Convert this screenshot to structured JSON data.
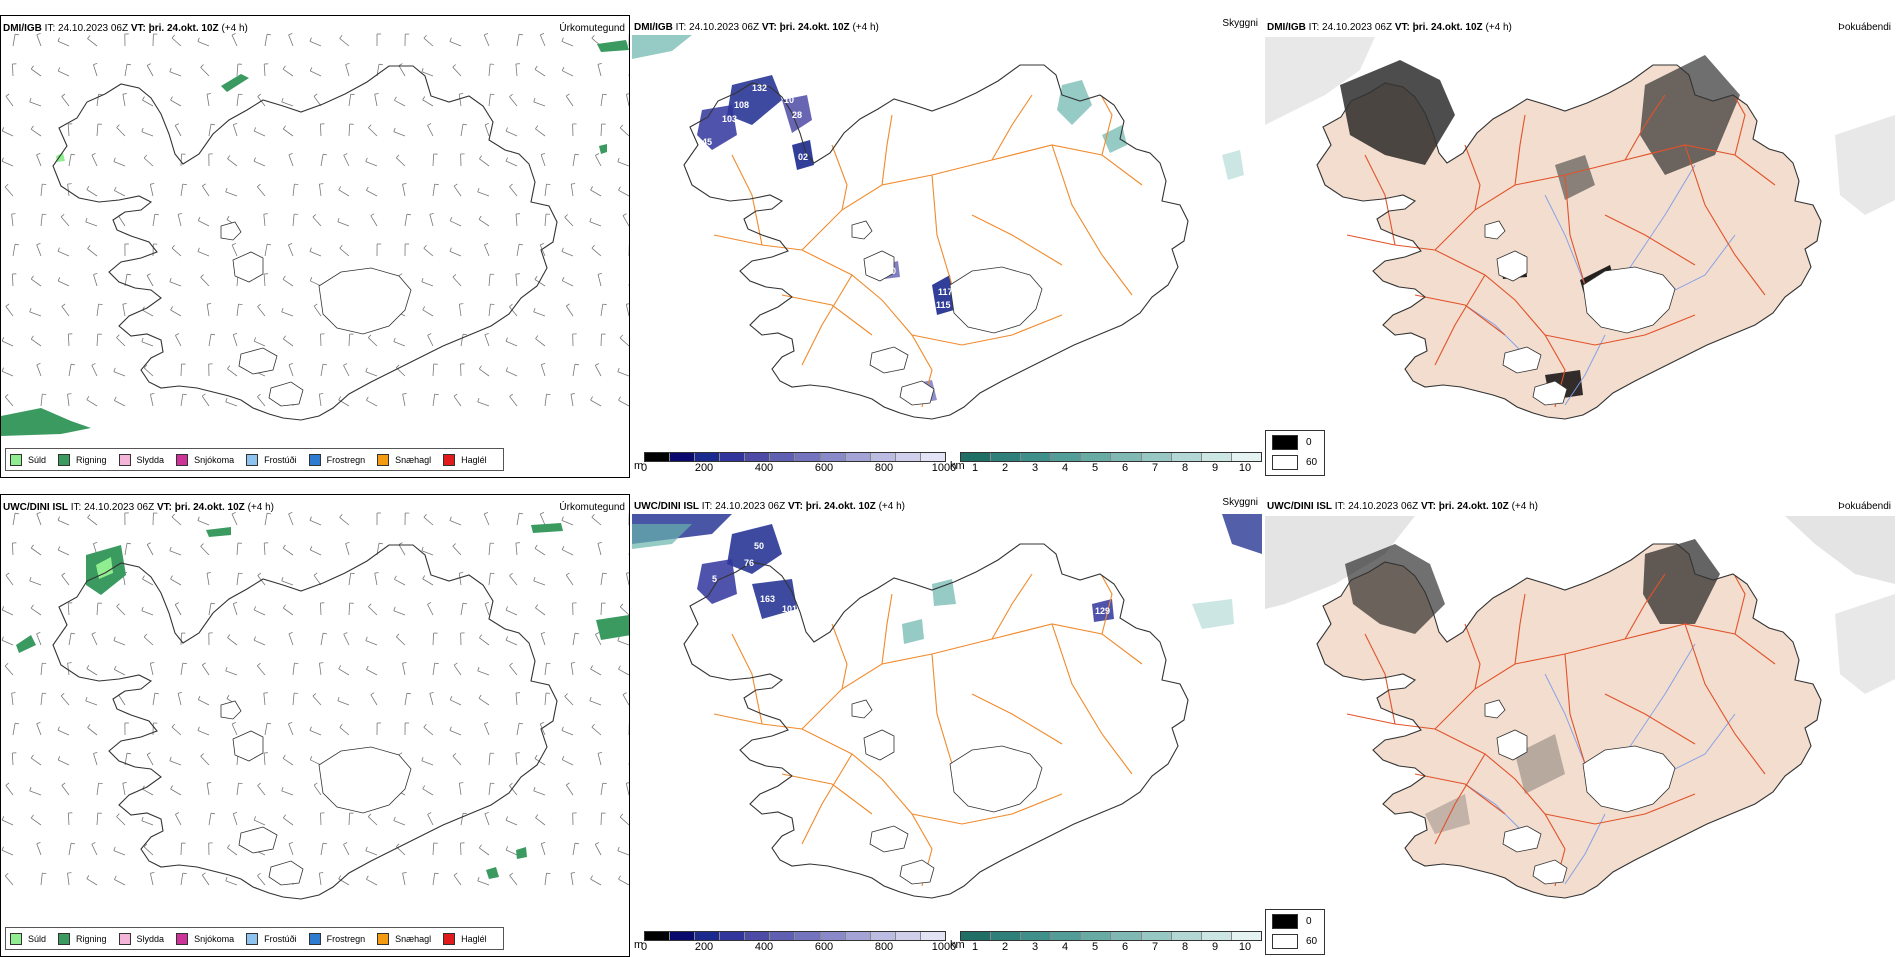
{
  "colors": {
    "coast": "#333333",
    "road_orange": "#f08a2c",
    "road_red": "#e2532a",
    "land_fog": "#f2ddce",
    "river_blue": "#7e9dea",
    "precip_green": "#3a9a60",
    "height_dark": "#1b2a8e",
    "vis_teal": "#6ab3ad"
  },
  "precip_legend": [
    {
      "label": "Súld",
      "color": "#90ee90"
    },
    {
      "label": "Rigning",
      "color": "#3a9a60"
    },
    {
      "label": "Slydda",
      "color": "#f5b5d8"
    },
    {
      "label": "Snjókoma",
      "color": "#cc3399"
    },
    {
      "label": "Frostúði",
      "color": "#8ec3f0"
    },
    {
      "label": "Frostregn",
      "color": "#2d7ccf"
    },
    {
      "label": "Snæhagl",
      "color": "#f39c12"
    },
    {
      "label": "Haglél",
      "color": "#e01b1b"
    }
  ],
  "height_legend": {
    "unit": "m",
    "colors": [
      "#000000",
      "#0a0a6e",
      "#1b2a8e",
      "#31359c",
      "#4d4ba6",
      "#6060b2",
      "#7474be",
      "#8a89c9",
      "#a4a3d6",
      "#bcbce3",
      "#d0d0ec",
      "#e3e3f5"
    ],
    "ticks": [
      "0",
      "200",
      "400",
      "600",
      "800",
      "1000"
    ]
  },
  "vis_legend": {
    "unit": "km",
    "colors": [
      "#1f6f66",
      "#2f807a",
      "#3f908a",
      "#529d97",
      "#68aba5",
      "#80b9b4",
      "#98c8c4",
      "#b2d7d4",
      "#cbe6e3",
      "#e4f2f1"
    ],
    "ticks": [
      "1",
      "2",
      "3",
      "4",
      "5",
      "6",
      "7",
      "8",
      "9",
      "10"
    ]
  },
  "fog_legend": [
    {
      "label": "0",
      "color": "#000000"
    },
    {
      "label": "60",
      "color": "#ffffff"
    }
  ],
  "rows": [
    {
      "model": "DMI/IGB",
      "it_label": "IT:",
      "it_value": "24.10.2023 06Z",
      "vt_label": "VT:",
      "vt_value": "þri. 24.okt. 10Z",
      "lead": "(+4 h)",
      "tag_precip": "Úrkomutegund",
      "tag_vis": "Skyggni",
      "tag_fog": "Þokuábendi",
      "height_values": [
        "108",
        "132",
        "103",
        "10",
        "28",
        "9",
        "02",
        "45",
        "117",
        "115",
        "10",
        "96"
      ]
    },
    {
      "model": "UWC/DINI ISL",
      "it_label": "IT:",
      "it_value": "24.10.2023 06Z",
      "vt_label": "VT:",
      "vt_value": "þri. 24.okt. 10Z",
      "lead": "(+4 h)",
      "tag_precip": "Úrkomutegund",
      "tag_vis": "Skyggni",
      "tag_fog": "Þokuábendi",
      "height_values": [
        "50",
        "76",
        "5",
        "163",
        "101",
        "129"
      ]
    }
  ]
}
